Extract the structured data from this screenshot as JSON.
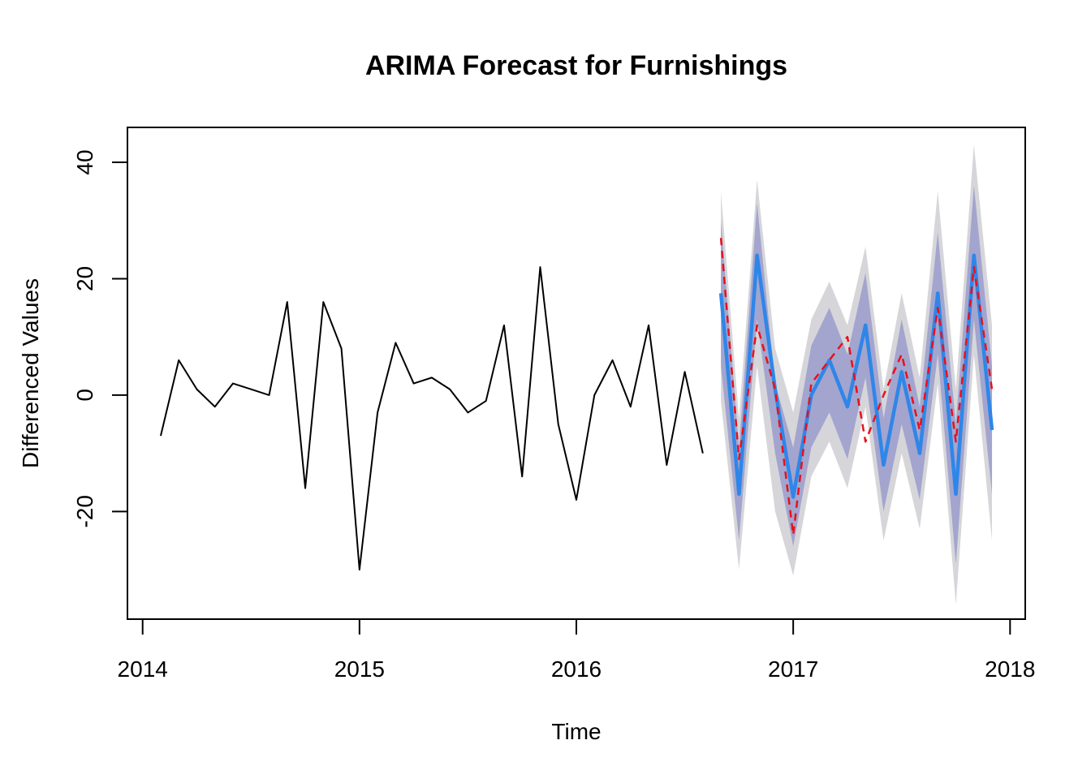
{
  "chart_data": {
    "type": "line",
    "title": "ARIMA Forecast for Furnishings",
    "xlabel": "Time",
    "ylabel": "Differenced Values",
    "xlim": [
      2013.93,
      2018.07
    ],
    "ylim": [
      -38.5,
      46
    ],
    "x_ticks": [
      2014,
      2015,
      2016,
      2017,
      2018
    ],
    "y_ticks": [
      -20,
      0,
      20,
      40
    ],
    "grid": false,
    "legend": "none",
    "colors": {
      "history": "#000000",
      "forecast": "#2F86E8",
      "actual": "#E8101C",
      "band_80": "#A3A5CE",
      "band_95": "#D6D6DA"
    },
    "history": {
      "x": [
        "2014-02",
        "2014-03",
        "2014-04",
        "2014-05",
        "2014-06",
        "2014-07",
        "2014-08",
        "2014-09",
        "2014-10",
        "2014-11",
        "2014-12",
        "2015-01",
        "2015-02",
        "2015-03",
        "2015-04",
        "2015-05",
        "2015-06",
        "2015-07",
        "2015-08",
        "2015-09",
        "2015-10",
        "2015-11",
        "2015-12",
        "2016-01",
        "2016-02",
        "2016-03",
        "2016-04",
        "2016-05",
        "2016-06",
        "2016-07",
        "2016-08"
      ],
      "values": [
        -7,
        6,
        1,
        -2,
        2,
        1,
        0,
        16,
        -16,
        16,
        8,
        -30,
        -3,
        9,
        2,
        3,
        1,
        -3,
        -1,
        12,
        -14,
        22,
        -5,
        -18,
        0,
        6,
        -2,
        12,
        -12,
        4,
        -10
      ]
    },
    "forecast": {
      "x": [
        "2016-09",
        "2016-10",
        "2016-11",
        "2016-12",
        "2017-01",
        "2017-02",
        "2017-03",
        "2017-04",
        "2017-05",
        "2017-06",
        "2017-07",
        "2017-08",
        "2017-09",
        "2017-10",
        "2017-11",
        "2017-12"
      ],
      "mean": [
        17.5,
        -17,
        24,
        1,
        -17.5,
        0,
        6,
        -2,
        12,
        -12,
        4,
        -10,
        17.5,
        -17,
        24,
        -6
      ],
      "lo80": [
        5,
        -25,
        13,
        -10,
        -26,
        -9,
        -3,
        -11,
        3,
        -20,
        -5,
        -18,
        7,
        -29,
        13,
        -17
      ],
      "hi80": [
        30,
        -9,
        33,
        2,
        -9,
        8.5,
        15,
        7,
        21,
        -4,
        13,
        -2,
        28,
        -5,
        36,
        5
      ],
      "lo95": [
        -1,
        -30,
        5,
        -20,
        -31,
        -14,
        -8,
        -16,
        -2,
        -25,
        -10,
        -23,
        2,
        -36,
        7,
        -25
      ],
      "hi95": [
        35,
        -4,
        37,
        8,
        -3,
        13,
        19.5,
        12,
        25.5,
        1,
        17.5,
        3,
        35,
        1,
        43,
        12
      ],
      "actual": [
        27,
        -11,
        12,
        1,
        -24,
        2,
        6,
        10,
        -8,
        0,
        7,
        -6,
        15,
        -8,
        22,
        1
      ]
    }
  }
}
